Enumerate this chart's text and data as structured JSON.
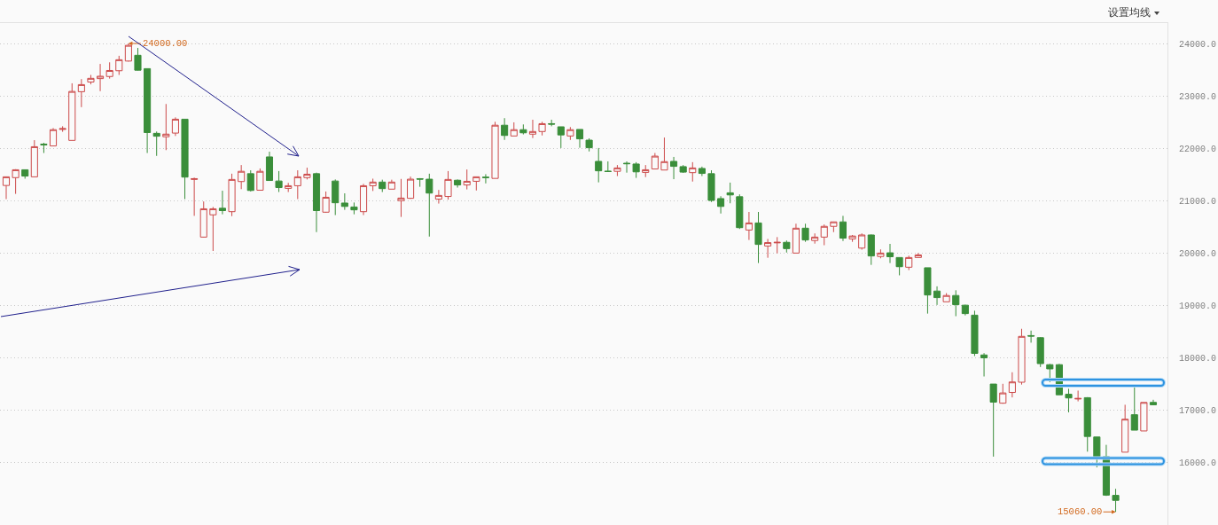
{
  "chart_data": {
    "type": "candlestick",
    "categories": [
      null,
      null,
      null,
      null,
      null,
      null,
      null,
      null,
      null,
      null,
      null,
      null,
      null,
      null,
      null,
      null,
      null,
      null,
      null,
      null,
      null,
      null,
      null,
      null,
      null,
      null,
      null,
      null,
      null,
      null,
      null,
      null,
      null,
      null,
      null,
      null,
      null,
      null,
      null,
      null,
      null,
      null,
      null,
      null,
      null,
      null,
      null,
      null,
      null,
      null,
      null,
      null,
      null,
      null,
      null,
      null,
      null,
      null,
      null,
      null,
      null,
      null,
      null,
      null,
      null,
      null,
      null,
      null,
      null,
      null,
      null,
      null,
      null,
      null,
      null,
      null,
      null,
      null,
      null,
      null,
      null,
      null,
      null,
      null,
      null,
      null,
      null,
      null,
      null,
      null,
      null,
      null,
      null,
      null,
      null,
      null,
      null,
      null,
      null,
      null,
      null,
      null,
      null,
      null,
      null,
      null,
      null,
      null,
      null,
      null,
      null,
      null,
      null,
      null,
      null,
      null,
      null,
      null,
      null,
      null,
      null,
      null,
      null
    ],
    "ohlc": [
      [
        21290,
        21460,
        21030,
        21455
      ],
      [
        21440,
        21600,
        21130,
        21590
      ],
      [
        21590,
        21595,
        21420,
        21470
      ],
      [
        21455,
        22155,
        21455,
        22030
      ],
      [
        22080,
        22105,
        21910,
        22065
      ],
      [
        22045,
        22385,
        22045,
        22355
      ],
      [
        22360,
        22420,
        22315,
        22375
      ],
      [
        22150,
        23240,
        22150,
        23085
      ],
      [
        23080,
        23320,
        22785,
        23215
      ],
      [
        23265,
        23400,
        23220,
        23335
      ],
      [
        23330,
        23610,
        23090,
        23375
      ],
      [
        23370,
        23640,
        23330,
        23485
      ],
      [
        23480,
        23765,
        23400,
        23690
      ],
      [
        23665,
        24000,
        23655,
        23965
      ],
      [
        23775,
        23915,
        23485,
        23490
      ],
      [
        23520,
        23520,
        21910,
        22300
      ],
      [
        22285,
        22320,
        21855,
        22230
      ],
      [
        22220,
        22845,
        21965,
        22270
      ],
      [
        22290,
        22590,
        22235,
        22555
      ],
      [
        22555,
        22555,
        21030,
        21450
      ],
      [
        21405,
        21440,
        20710,
        21420
      ],
      [
        20305,
        20985,
        20300,
        20845
      ],
      [
        20730,
        20880,
        20040,
        20845
      ],
      [
        20855,
        21190,
        20740,
        20810
      ],
      [
        20790,
        21515,
        20705,
        21405
      ],
      [
        21365,
        21680,
        21220,
        21560
      ],
      [
        21515,
        21580,
        21175,
        21195
      ],
      [
        21200,
        21615,
        21200,
        21560
      ],
      [
        21835,
        21935,
        21385,
        21385
      ],
      [
        21375,
        21565,
        21165,
        21250
      ],
      [
        21235,
        21340,
        21165,
        21285
      ],
      [
        21285,
        21580,
        21030,
        21455
      ],
      [
        21440,
        21630,
        21405,
        21505
      ],
      [
        21515,
        21535,
        20400,
        20810
      ],
      [
        20780,
        21175,
        20770,
        21065
      ],
      [
        21375,
        21405,
        20725,
        20960
      ],
      [
        20955,
        21140,
        20825,
        20890
      ],
      [
        20880,
        20965,
        20740,
        20825
      ],
      [
        20790,
        21320,
        20725,
        21285
      ],
      [
        21285,
        21420,
        21185,
        21355
      ],
      [
        21355,
        21400,
        21165,
        21230
      ],
      [
        21220,
        21400,
        21220,
        21355
      ],
      [
        21000,
        21415,
        20690,
        21050
      ],
      [
        21045,
        21460,
        21035,
        21410
      ],
      [
        21420,
        21430,
        21265,
        21410
      ],
      [
        21410,
        21515,
        20315,
        21145
      ],
      [
        21030,
        21205,
        20945,
        21100
      ],
      [
        21080,
        21565,
        21020,
        21405
      ],
      [
        21390,
        21405,
        21250,
        21300
      ],
      [
        21300,
        21595,
        21215,
        21370
      ],
      [
        21370,
        21455,
        21195,
        21455
      ],
      [
        21450,
        21505,
        21330,
        21440
      ],
      [
        21425,
        22505,
        21425,
        22440
      ],
      [
        22440,
        22575,
        22160,
        22245
      ],
      [
        22235,
        22495,
        22235,
        22355
      ],
      [
        22355,
        22455,
        22265,
        22295
      ],
      [
        22270,
        22545,
        22195,
        22320
      ],
      [
        22320,
        22505,
        22245,
        22470
      ],
      [
        22470,
        22545,
        22420,
        22460
      ],
      [
        22410,
        22410,
        22005,
        22255
      ],
      [
        22235,
        22405,
        22160,
        22355
      ],
      [
        22360,
        22360,
        22010,
        22180
      ],
      [
        22155,
        22190,
        21940,
        22010
      ],
      [
        21750,
        22005,
        21350,
        21570
      ],
      [
        21565,
        21750,
        21555,
        21555
      ],
      [
        21560,
        21680,
        21470,
        21625
      ],
      [
        21715,
        21750,
        21535,
        21705
      ],
      [
        21700,
        21735,
        21435,
        21550
      ],
      [
        21540,
        21680,
        21450,
        21590
      ],
      [
        21605,
        21910,
        21605,
        21850
      ],
      [
        21585,
        22205,
        21585,
        21745
      ],
      [
        21750,
        21835,
        21410,
        21655
      ],
      [
        21650,
        21680,
        21530,
        21545
      ],
      [
        21535,
        21735,
        21365,
        21625
      ],
      [
        21615,
        21650,
        21470,
        21520
      ],
      [
        21515,
        21580,
        20975,
        21005
      ],
      [
        21040,
        21085,
        20755,
        20890
      ],
      [
        21150,
        21345,
        20950,
        21110
      ],
      [
        21075,
        21120,
        20460,
        20485
      ],
      [
        20440,
        20785,
        20250,
        20575
      ],
      [
        20575,
        20785,
        19810,
        20165
      ],
      [
        20135,
        20270,
        19910,
        20200
      ],
      [
        20195,
        20305,
        19995,
        20205
      ],
      [
        20205,
        20240,
        20010,
        20085
      ],
      [
        20000,
        20560,
        20000,
        20475
      ],
      [
        20475,
        20560,
        20215,
        20250
      ],
      [
        20240,
        20375,
        20180,
        20305
      ],
      [
        20305,
        20545,
        20150,
        20510
      ],
      [
        20510,
        20595,
        20400,
        20595
      ],
      [
        20595,
        20710,
        20230,
        20285
      ],
      [
        20270,
        20345,
        20215,
        20325
      ],
      [
        20095,
        20375,
        20065,
        20345
      ],
      [
        20345,
        20355,
        19775,
        19945
      ],
      [
        19935,
        20070,
        19900,
        20000
      ],
      [
        20005,
        20175,
        19810,
        19930
      ],
      [
        19915,
        19915,
        19575,
        19740
      ],
      [
        19730,
        19950,
        19675,
        19915
      ],
      [
        19915,
        20000,
        19915,
        19965
      ],
      [
        19720,
        19720,
        18845,
        19200
      ],
      [
        19275,
        19365,
        19010,
        19150
      ],
      [
        19070,
        19235,
        19070,
        19190
      ],
      [
        19190,
        19290,
        18795,
        19015
      ],
      [
        19005,
        19015,
        18810,
        18845
      ],
      [
        18815,
        18900,
        18035,
        18085
      ],
      [
        18055,
        18090,
        17645,
        18000
      ],
      [
        17500,
        17500,
        16115,
        17155
      ],
      [
        17135,
        17505,
        17125,
        17330
      ],
      [
        17340,
        17725,
        17245,
        17540
      ],
      [
        17535,
        18555,
        17490,
        18410
      ],
      [
        18425,
        18520,
        18290,
        18415
      ],
      [
        18385,
        18395,
        17825,
        17890
      ],
      [
        17870,
        17885,
        17535,
        17790
      ],
      [
        17870,
        17885,
        17295,
        17295
      ],
      [
        17305,
        17410,
        16960,
        17235
      ],
      [
        17215,
        17375,
        17170,
        17225
      ],
      [
        17240,
        17250,
        16210,
        16500
      ],
      [
        16490,
        16490,
        15910,
        16115
      ],
      [
        16115,
        16340,
        15365,
        15380
      ],
      [
        15375,
        15500,
        15060,
        15280
      ],
      [
        16200,
        17105,
        16200,
        16830
      ],
      [
        16915,
        17475,
        16620,
        16620
      ],
      [
        16605,
        17150,
        16605,
        17150
      ],
      [
        17150,
        17200,
        17095,
        17105
      ]
    ],
    "colors": [
      "#cc4a4a",
      "#cc4a4a",
      "#3a8e3a",
      "#cc4a4a",
      "#3a8e3a",
      "#cc4a4a",
      "#cc4a4a",
      "#cc4a4a",
      "#cc4a4a",
      "#cc4a4a",
      "#cc4a4a",
      "#cc4a4a",
      "#cc4a4a",
      "#cc4a4a",
      "#3a8e3a",
      "#3a8e3a",
      "#3a8e3a",
      "#cc4a4a",
      "#cc4a4a",
      "#3a8e3a",
      "#cc4a4a",
      "#cc4a4a",
      "#cc4a4a",
      "#3a8e3a",
      "#cc4a4a",
      "#cc4a4a",
      "#3a8e3a",
      "#cc4a4a",
      "#3a8e3a",
      "#3a8e3a",
      "#cc4a4a",
      "#cc4a4a",
      "#cc4a4a",
      "#3a8e3a",
      "#cc4a4a",
      "#3a8e3a",
      "#3a8e3a",
      "#3a8e3a",
      "#cc4a4a",
      "#cc4a4a",
      "#3a8e3a",
      "#cc4a4a",
      "#cc4a4a",
      "#cc4a4a",
      "#3a8e3a",
      "#3a8e3a",
      "#cc4a4a",
      "#cc4a4a",
      "#3a8e3a",
      "#cc4a4a",
      "#cc4a4a",
      "#3a8e3a",
      "#cc4a4a",
      "#3a8e3a",
      "#cc4a4a",
      "#3a8e3a",
      "#cc4a4a",
      "#cc4a4a",
      "#3a8e3a",
      "#3a8e3a",
      "#cc4a4a",
      "#3a8e3a",
      "#3a8e3a",
      "#3a8e3a",
      "#3a8e3a",
      "#cc4a4a",
      "#3a8e3a",
      "#3a8e3a",
      "#cc4a4a",
      "#cc4a4a",
      "#cc4a4a",
      "#3a8e3a",
      "#3a8e3a",
      "#cc4a4a",
      "#3a8e3a",
      "#3a8e3a",
      "#3a8e3a",
      "#3a8e3a",
      "#3a8e3a",
      "#cc4a4a",
      "#3a8e3a",
      "#cc4a4a",
      "#cc4a4a",
      "#3a8e3a",
      "#cc4a4a",
      "#3a8e3a",
      "#cc4a4a",
      "#cc4a4a",
      "#cc4a4a",
      "#3a8e3a",
      "#cc4a4a",
      "#cc4a4a",
      "#3a8e3a",
      "#cc4a4a",
      "#3a8e3a",
      "#3a8e3a",
      "#cc4a4a",
      "#cc4a4a",
      "#3a8e3a",
      "#3a8e3a",
      "#cc4a4a",
      "#3a8e3a",
      "#3a8e3a",
      "#3a8e3a",
      "#3a8e3a",
      "#3a8e3a",
      "#cc4a4a",
      "#cc4a4a",
      "#cc4a4a",
      "#3a8e3a",
      "#3a8e3a",
      "#3a8e3a",
      "#3a8e3a",
      "#3a8e3a",
      "#cc4a4a",
      "#3a8e3a",
      "#3a8e3a",
      "#3a8e3a",
      "#3a8e3a",
      "#cc4a4a",
      "#3a8e3a",
      "#cc4a4a",
      "#3a8e3a"
    ],
    "ylim": [
      14810,
      24390
    ],
    "yticks": [
      {
        "value": 16000,
        "label": "16000.0"
      },
      {
        "value": 17000,
        "label": "17000.0"
      },
      {
        "value": 18000,
        "label": "18000.0"
      },
      {
        "value": 19000,
        "label": "19000.0"
      },
      {
        "value": 20000,
        "label": "20000.0"
      },
      {
        "value": 21000,
        "label": "21000.0"
      },
      {
        "value": 22000,
        "label": "22000.0"
      },
      {
        "value": 23000,
        "label": "23000.0"
      },
      {
        "value": 24000,
        "label": "24000.0"
      }
    ],
    "grid": "y",
    "tick_labels": "y",
    "annotations": [
      "设置均线",
      "24000.00",
      "15060.00"
    ]
  }
}
